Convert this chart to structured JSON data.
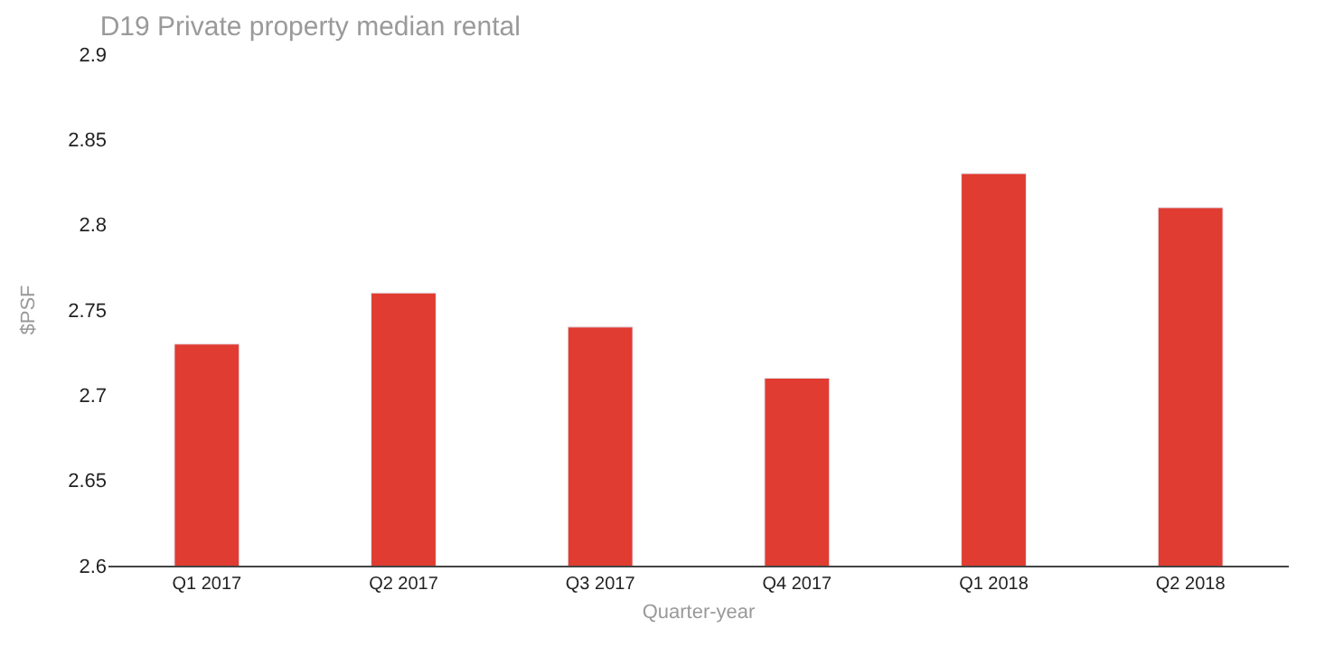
{
  "chart_data": {
    "type": "bar",
    "title": "D19 Private property median rental",
    "xlabel": "Quarter-year",
    "ylabel": "$PSF",
    "categories": [
      "Q1 2017",
      "Q2 2017",
      "Q3 2017",
      "Q4 2017",
      "Q1 2018",
      "Q2 2018"
    ],
    "values": [
      2.73,
      2.76,
      2.74,
      2.71,
      2.83,
      2.81
    ],
    "color": "#e03c31",
    "ylim": [
      2.6,
      2.9
    ],
    "yticks": [
      2.6,
      2.65,
      2.7,
      2.75,
      2.8,
      2.85,
      2.9
    ],
    "grid": false,
    "legend": false
  }
}
